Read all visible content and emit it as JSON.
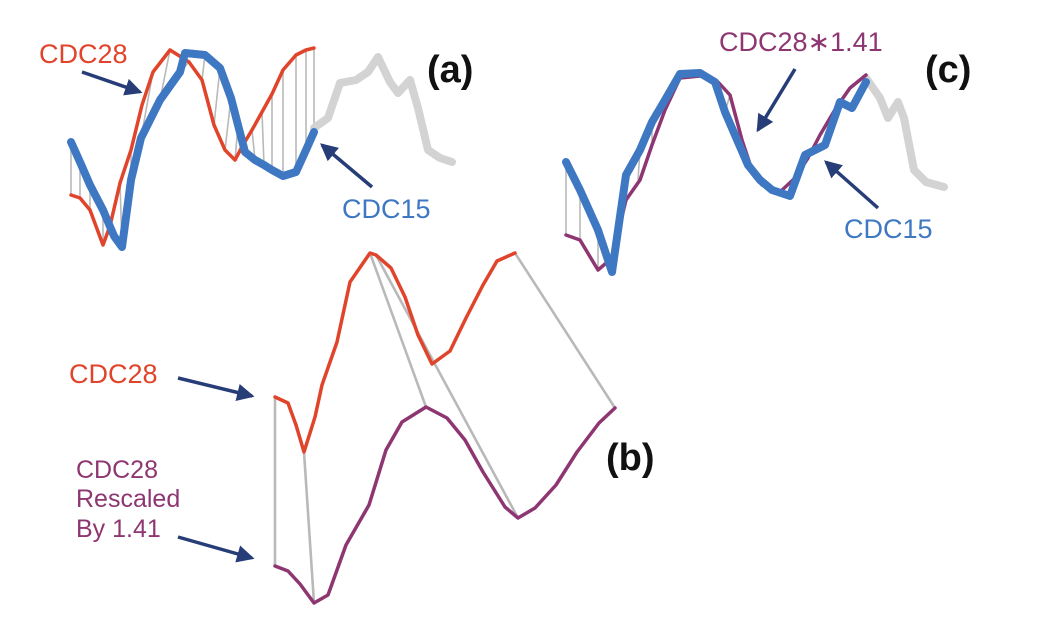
{
  "colors": {
    "cdc28": "#e0442b",
    "cdc15": "#3f78c2",
    "rescaled": "#8e3671",
    "continuation": "#d3d3d3",
    "warp": "#b9b9b9",
    "arrow": "#263d77"
  },
  "panels": {
    "a": {
      "tag": "(a)",
      "cdc28_label": "CDC28",
      "cdc15_label": "CDC15"
    },
    "b": {
      "tag": "(b)",
      "cdc28_label": "CDC28",
      "rescaled_label": [
        "CDC28",
        "Rescaled",
        "By 1.41"
      ]
    },
    "c": {
      "tag": "(c)",
      "rescaled_label": "CDC28∗1.41",
      "cdc15_label": "CDC15"
    }
  }
}
